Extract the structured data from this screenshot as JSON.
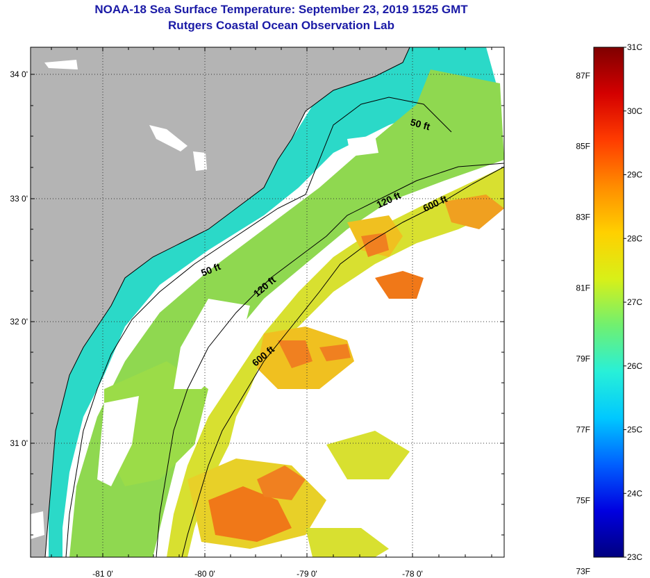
{
  "title": {
    "line1": "NOAA-18 Sea Surface Temperature:  September 23, 2019 1525 GMT",
    "line2": "Rutgers Coastal Ocean Observation Lab"
  },
  "map": {
    "lat_labels": [
      "34 0'",
      "33 0'",
      "32 0'",
      "31 0'"
    ],
    "lon_labels": [
      "-81 0'",
      "-80 0'",
      "-79 0'",
      "-78 0'"
    ],
    "contour_labels": [
      "50 ft",
      "120 ft",
      "600 ft",
      "50 ft",
      "120 ft",
      "600 ft"
    ],
    "colors": {
      "land": "#b4b4b4",
      "water_cool": "#2bd9c8",
      "water_mid": "#8fd850",
      "water_warm": "#f0c020",
      "water_hot": "#f07818",
      "cloud": "#ffffff"
    }
  },
  "colorbar": {
    "fahrenheit": [
      "87F",
      "85F",
      "83F",
      "81F",
      "79F",
      "77F",
      "75F",
      "73F"
    ],
    "celsius": [
      "31C",
      "30C",
      "29C",
      "28C",
      "27C",
      "26C",
      "25C",
      "24C",
      "23C"
    ],
    "stops": [
      "#00007f",
      "#0000e0",
      "#0060ff",
      "#00c8ff",
      "#28f0d8",
      "#70f070",
      "#d8f018",
      "#ffd000",
      "#ff8c00",
      "#ff3c00",
      "#d40000",
      "#7f0000"
    ]
  }
}
